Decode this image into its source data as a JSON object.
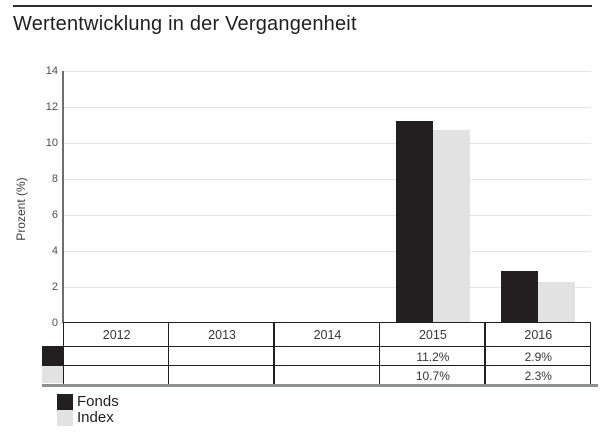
{
  "title": "Wertentwicklung in der Vergangenheit",
  "colors": {
    "fonds": "#231f20",
    "index": "#e2e2e2",
    "grid": "#e4e4e4",
    "table_border": "#231f20",
    "bottom_rule": "#8e9093"
  },
  "chart_data": {
    "type": "bar",
    "title": "Wertentwicklung in der Vergangenheit",
    "categories": [
      "2012",
      "2013",
      "2014",
      "2015",
      "2016"
    ],
    "series": [
      {
        "name": "Fonds",
        "color": "#231f20",
        "values": [
          null,
          null,
          null,
          11.2,
          2.9
        ]
      },
      {
        "name": "Index",
        "color": "#e2e2e2",
        "values": [
          null,
          null,
          null,
          10.7,
          2.3
        ]
      }
    ],
    "xlabel": "",
    "ylabel": "Prozent (%)",
    "ylim": [
      0,
      14
    ],
    "ytick_step": 2,
    "grid": true,
    "legend_position": "bottom-left"
  },
  "table": {
    "header": [
      "2012",
      "2013",
      "2014",
      "2015",
      "2016"
    ],
    "rows": [
      {
        "label": "Fonds",
        "swatch": "#231f20",
        "cells": [
          "",
          "",
          "",
          "11.2%",
          "2.9%"
        ]
      },
      {
        "label": "Index",
        "swatch": "#e2e2e2",
        "cells": [
          "",
          "",
          "",
          "10.7%",
          "2.3%"
        ]
      }
    ]
  },
  "legend": {
    "items": [
      {
        "label": "Fonds",
        "color": "#231f20"
      },
      {
        "label": "Index",
        "color": "#e2e2e2"
      }
    ]
  }
}
